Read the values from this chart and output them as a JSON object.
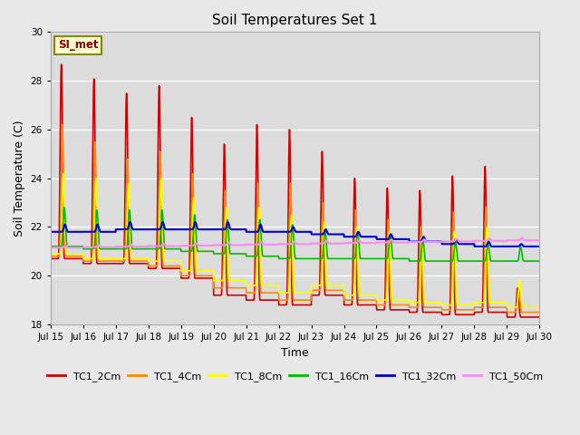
{
  "title": "Soil Temperatures Set 1",
  "xlabel": "Time",
  "ylabel": "Soil Temperature (C)",
  "ylim": [
    18,
    30
  ],
  "background_color": "#e8e8e8",
  "plot_bg_color": "#dcdcdc",
  "annotation_text": "SI_met",
  "annotation_bg": "#ffffcc",
  "annotation_border": "#888800",
  "annotation_text_color": "#880000",
  "series_names": [
    "TC1_2Cm",
    "TC1_4Cm",
    "TC1_8Cm",
    "TC1_16Cm",
    "TC1_32Cm",
    "TC1_50Cm"
  ],
  "series_colors": [
    "#cc0000",
    "#ff8800",
    "#ffff00",
    "#00bb00",
    "#0000cc",
    "#ff88ff"
  ],
  "series_lw": [
    1.2,
    1.2,
    1.2,
    1.2,
    1.5,
    1.5
  ],
  "xtick_labels": [
    "Jul 15",
    "Jul 16",
    "Jul 17",
    "Jul 18",
    "Jul 19",
    "Jul 20",
    "Jul 21",
    "Jul 22",
    "Jul 23",
    "Jul 24",
    "Jul 25",
    "Jul 26",
    "Jul 27",
    "Jul 28",
    "Jul 29",
    "Jul 30"
  ],
  "ytick_values": [
    18,
    20,
    22,
    24,
    26,
    28,
    30
  ],
  "grid_color": "#ffffff",
  "grid_lw": 1.0,
  "figsize": [
    6.4,
    4.8
  ],
  "dpi": 100
}
